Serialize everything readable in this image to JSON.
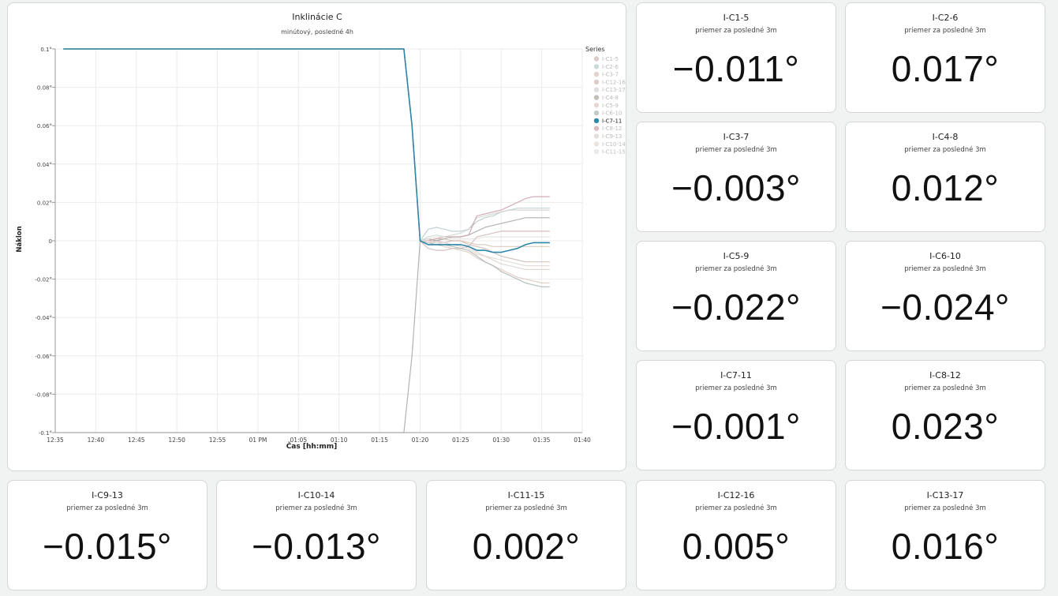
{
  "chart_data": {
    "type": "line",
    "title": "Inklinácie C",
    "subtitle": "minútový, posledné 4h",
    "xlabel": "Čas [hh:mm]",
    "ylabel": "Náklon",
    "x_ticks": [
      "12:35",
      "12:40",
      "12:45",
      "12:50",
      "12:55",
      "01 PM",
      "01:05",
      "01:10",
      "01:15",
      "01:20",
      "01:25",
      "01:30",
      "01:35",
      "01:40"
    ],
    "y_ticks": [
      "0.1°",
      "0.08°",
      "0.06°",
      "0.04°",
      "0.02°",
      "0",
      "-0.02°",
      "-0.04°",
      "-0.06°",
      "-0.08°",
      "-0.1°"
    ],
    "xlim": [
      "12:35",
      "01:40"
    ],
    "ylim": [
      -0.1,
      0.1
    ],
    "grid": true,
    "legend_title": "Series",
    "legend_position": "right",
    "highlighted_series": "I-C7-11",
    "x": [
      "12:36",
      "01:15",
      "01:18",
      "01:19",
      "01:20",
      "01:21",
      "01:22",
      "01:23",
      "01:24",
      "01:25",
      "01:26",
      "01:27",
      "01:28",
      "01:29",
      "01:30",
      "01:31",
      "01:32",
      "01:33",
      "01:34",
      "01:35",
      "01:36"
    ],
    "series": [
      {
        "name": "I-C1-5",
        "color": "#c9b7b4",
        "values": [
          0.1,
          0.1,
          0.1,
          0.06,
          0.0,
          -0.001,
          0.0,
          -0.001,
          0.0,
          0.0,
          -0.002,
          -0.003,
          -0.004,
          -0.006,
          -0.008,
          -0.009,
          -0.01,
          -0.011,
          -0.011,
          -0.011,
          -0.011
        ]
      },
      {
        "name": "I-C2-6",
        "color": "#b7c9cc",
        "values": [
          0.1,
          0.1,
          0.1,
          0.06,
          0.0,
          0.006,
          0.007,
          0.006,
          0.005,
          0.005,
          0.006,
          0.01,
          0.012,
          0.013,
          0.015,
          0.016,
          0.017,
          0.017,
          0.017,
          0.017,
          0.017
        ]
      },
      {
        "name": "I-C3-7",
        "color": "#d6c2b6",
        "values": [
          0.1,
          0.1,
          0.1,
          0.06,
          0.0,
          0.0,
          0.001,
          0.001,
          0.0,
          0.0,
          -0.001,
          -0.002,
          -0.002,
          -0.003,
          -0.003,
          -0.003,
          -0.003,
          -0.003,
          -0.003,
          -0.003,
          -0.003
        ]
      },
      {
        "name": "I-C12-16",
        "color": "#cfb3b3",
        "values": [
          0.1,
          0.1,
          0.1,
          0.06,
          0.0,
          -0.004,
          -0.005,
          -0.005,
          -0.004,
          -0.004,
          -0.003,
          0.002,
          0.003,
          0.004,
          0.005,
          0.005,
          0.005,
          0.005,
          0.005,
          0.005,
          0.005
        ]
      },
      {
        "name": "I-C13-17",
        "color": "#cfd3d1",
        "values": [
          0.1,
          0.1,
          0.1,
          0.06,
          0.0,
          0.002,
          0.003,
          0.002,
          0.003,
          0.004,
          0.006,
          0.012,
          0.013,
          0.014,
          0.015,
          0.016,
          0.016,
          0.016,
          0.016,
          0.016,
          0.016
        ]
      },
      {
        "name": "I-C4-8",
        "color": "#a9a5a0",
        "values": [
          -0.1,
          -0.1,
          -0.1,
          -0.06,
          0.0,
          0.001,
          0.0,
          0.001,
          0.002,
          0.002,
          0.003,
          0.005,
          0.007,
          0.008,
          0.009,
          0.01,
          0.011,
          0.012,
          0.012,
          0.012,
          0.012
        ]
      },
      {
        "name": "I-C5-9",
        "color": "#dbc8bf",
        "values": [
          0.1,
          0.1,
          0.1,
          0.06,
          0.0,
          -0.002,
          -0.002,
          -0.003,
          -0.004,
          -0.005,
          -0.006,
          -0.009,
          -0.011,
          -0.013,
          -0.015,
          -0.017,
          -0.019,
          -0.02,
          -0.021,
          -0.022,
          -0.022
        ]
      },
      {
        "name": "I-C6-10",
        "color": "#a8b5b3",
        "values": [
          0.1,
          0.1,
          0.1,
          0.06,
          0.0,
          -0.001,
          -0.002,
          -0.002,
          -0.003,
          -0.004,
          -0.005,
          -0.008,
          -0.011,
          -0.013,
          -0.016,
          -0.018,
          -0.02,
          -0.022,
          -0.023,
          -0.024,
          -0.024
        ]
      },
      {
        "name": "I-C7-11",
        "color": "#2e86a8",
        "values": [
          0.1,
          0.1,
          0.1,
          0.06,
          0.0,
          -0.002,
          -0.002,
          -0.002,
          -0.002,
          -0.002,
          -0.003,
          -0.005,
          -0.005,
          -0.006,
          -0.006,
          -0.005,
          -0.004,
          -0.002,
          -0.001,
          -0.001,
          -0.001
        ]
      },
      {
        "name": "I-C8-12",
        "color": "#cc9fa7",
        "values": [
          0.1,
          0.1,
          0.1,
          0.06,
          0.0,
          0.0,
          0.001,
          0.002,
          0.002,
          0.002,
          0.003,
          0.013,
          0.014,
          0.015,
          0.016,
          0.018,
          0.02,
          0.022,
          0.023,
          0.023,
          0.023
        ]
      },
      {
        "name": "I-C9-13",
        "color": "#d9d2cf",
        "values": [
          0.1,
          0.1,
          0.1,
          0.06,
          0.0,
          -0.001,
          -0.001,
          -0.002,
          -0.002,
          -0.002,
          -0.003,
          -0.006,
          -0.008,
          -0.01,
          -0.012,
          -0.013,
          -0.014,
          -0.015,
          -0.015,
          -0.015,
          -0.015
        ]
      },
      {
        "name": "I-C10-14",
        "color": "#e2d7d4",
        "values": [
          0.1,
          0.1,
          0.1,
          0.06,
          0.0,
          0.0,
          -0.001,
          -0.001,
          -0.002,
          -0.003,
          -0.004,
          -0.007,
          -0.008,
          -0.009,
          -0.01,
          -0.011,
          -0.012,
          -0.013,
          -0.013,
          -0.013,
          -0.013
        ]
      },
      {
        "name": "I-C11-15",
        "color": "#e3e0df",
        "values": [
          0.1,
          0.1,
          0.1,
          0.06,
          0.0,
          0.001,
          0.002,
          0.002,
          0.001,
          0.001,
          0.001,
          0.001,
          0.002,
          0.002,
          0.002,
          0.002,
          0.002,
          0.002,
          0.002,
          0.002,
          0.002
        ]
      }
    ]
  },
  "stats": [
    {
      "title": "I-C1-5",
      "subtitle": "priemer za posledné 3m",
      "value": "−0.011°"
    },
    {
      "title": "I-C2-6",
      "subtitle": "priemer za posledné 3m",
      "value": "0.017°"
    },
    {
      "title": "I-C3-7",
      "subtitle": "priemer za posledné 3m",
      "value": "−0.003°"
    },
    {
      "title": "I-C4-8",
      "subtitle": "priemer za posledné 3m",
      "value": "0.012°"
    },
    {
      "title": "I-C5-9",
      "subtitle": "priemer za posledné 3m",
      "value": "−0.022°"
    },
    {
      "title": "I-C6-10",
      "subtitle": "priemer za posledné 3m",
      "value": "−0.024°"
    },
    {
      "title": "I-C7-11",
      "subtitle": "priemer za posledné 3m",
      "value": "−0.001°"
    },
    {
      "title": "I-C8-12",
      "subtitle": "priemer za posledné 3m",
      "value": "0.023°"
    },
    {
      "title": "I-C9-13",
      "subtitle": "priemer za posledné 3m",
      "value": "−0.015°"
    },
    {
      "title": "I-C10-14",
      "subtitle": "priemer za posledné 3m",
      "value": "−0.013°"
    },
    {
      "title": "I-C11-15",
      "subtitle": "priemer za posledné 3m",
      "value": "0.002°"
    },
    {
      "title": "I-C12-16",
      "subtitle": "priemer za posledné 3m",
      "value": "0.005°"
    },
    {
      "title": "I-C13-17",
      "subtitle": "priemer za posledné 3m",
      "value": "0.016°"
    }
  ]
}
